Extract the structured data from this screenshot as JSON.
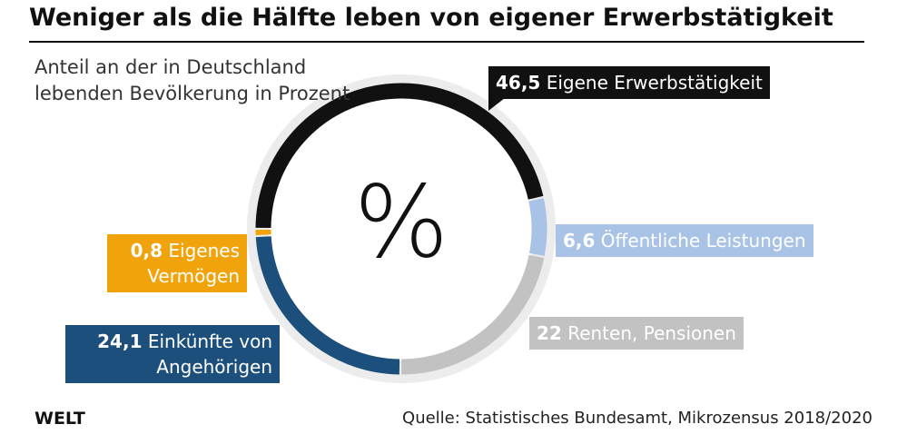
{
  "chart_data": {
    "type": "pie",
    "title": "Weniger als die Hälfte leben von eigener Erwerbstätigkeit",
    "subtitle": "Anteil an der in Deutschland lebenden Bevölkerung in Prozent",
    "center_label": "%",
    "categories": [
      "Eigene Erwerbstätigkeit",
      "Öffentliche Leistungen",
      "Renten, Pensionen",
      "Einkünfte von Angehörigen",
      "Eigenes Vermögen"
    ],
    "values": [
      46.5,
      6.6,
      22,
      24.1,
      0.8
    ],
    "value_labels": [
      "46,5",
      "6,6",
      "22",
      "24,1",
      "0,8"
    ],
    "colors": [
      "#111111",
      "#a8c3e6",
      "#c2c2c2",
      "#1d4f7c",
      "#f0a30a"
    ],
    "brand": "WELT",
    "source": "Quelle: Statistisches Bundesamt, Mikrozensus 2018/2020"
  }
}
